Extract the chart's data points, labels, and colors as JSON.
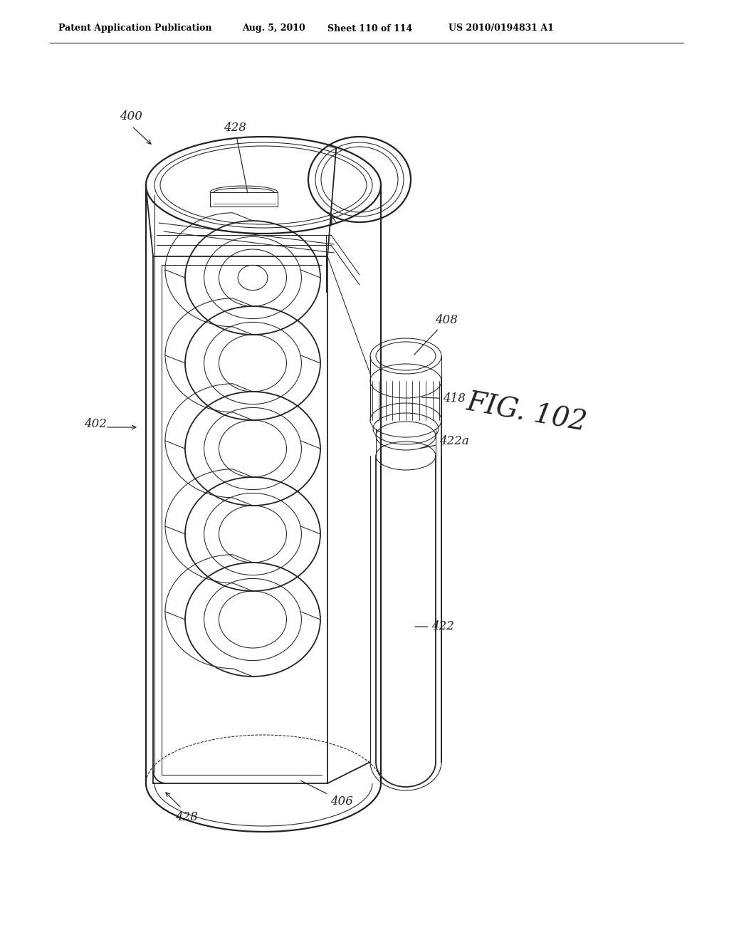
{
  "bg": "#ffffff",
  "lc": "#222222",
  "header1": "Patent Application Publication",
  "header2": "Aug. 5, 2010",
  "header3": "Sheet 110 of 114",
  "header4": "US 2010/0194831 A1",
  "fig": "FIG. 102",
  "lw": 1.3,
  "lt": 0.75,
  "figw": 10.24,
  "figh": 13.2,
  "dpi": 100
}
